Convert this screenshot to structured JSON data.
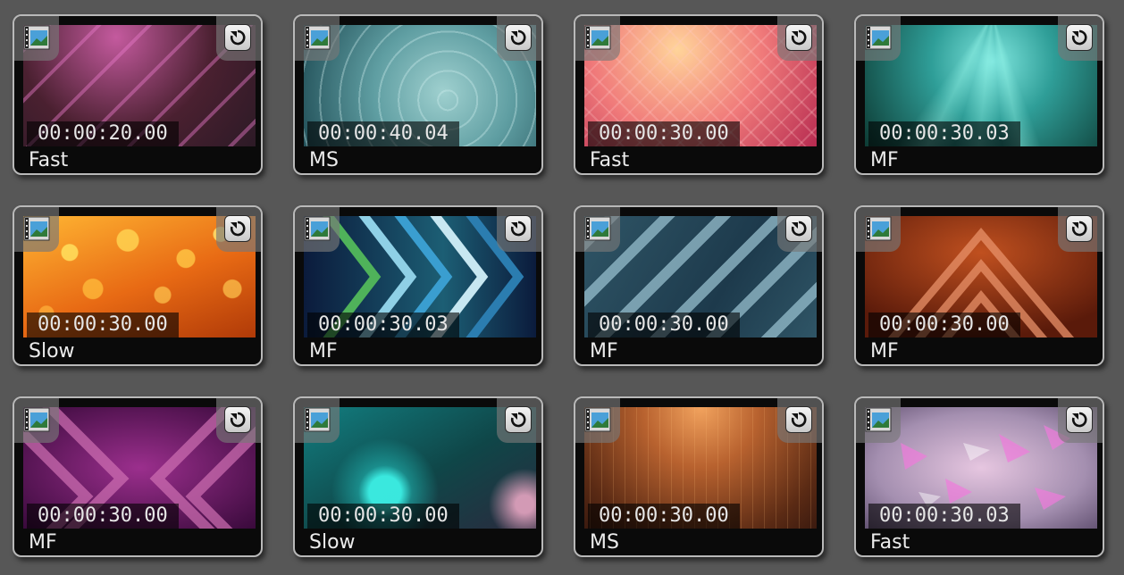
{
  "tiles": [
    {
      "timecode": "00:00:20.00",
      "label": "Fast",
      "theme": "pink-diagonals",
      "colors": [
        "#2c1a26",
        "#b0457f",
        "#4a2030"
      ]
    },
    {
      "timecode": "00:00:40.04",
      "label": "MS",
      "theme": "teal-rings",
      "colors": [
        "#1f4c55",
        "#7ab3b5",
        "#2a5c62"
      ]
    },
    {
      "timecode": "00:00:30.00",
      "label": "Fast",
      "theme": "coral-diamonds",
      "colors": [
        "#d84b68",
        "#ffd49a",
        "#b62a50"
      ]
    },
    {
      "timecode": "00:00:30.03",
      "label": "MF",
      "theme": "teal-rays",
      "colors": [
        "#0d3b34",
        "#45c2be",
        "#0d4a3e"
      ]
    },
    {
      "timecode": "00:00:30.00",
      "label": "Slow",
      "theme": "orange-hexagons",
      "colors": [
        "#d9520a",
        "#ffb633",
        "#b03a08"
      ]
    },
    {
      "timecode": "00:00:30.03",
      "label": "MF",
      "theme": "blue-chevrons",
      "colors": [
        "#0b1b3c",
        "#3a9ed0",
        "#1c5e74"
      ]
    },
    {
      "timecode": "00:00:30.00",
      "label": "MF",
      "theme": "slate-stripes",
      "colors": [
        "#1d3a4c",
        "#7aa3b4",
        "#2f5566"
      ]
    },
    {
      "timecode": "00:00:30.00",
      "label": "MF",
      "theme": "rust-triangles",
      "colors": [
        "#7a2510",
        "#e07a45",
        "#a13a18"
      ]
    },
    {
      "timecode": "00:00:30.00",
      "label": "MF",
      "theme": "magenta-chevrons",
      "colors": [
        "#4b0f4d",
        "#c25aa2",
        "#6b1a6a"
      ]
    },
    {
      "timecode": "00:00:30.00",
      "label": "Slow",
      "theme": "teal-bokeh",
      "colors": [
        "#0f4648",
        "#24c4c0",
        "#2a2a3e"
      ]
    },
    {
      "timecode": "00:00:30.00",
      "label": "MS",
      "theme": "bronze-rain",
      "colors": [
        "#5a2a14",
        "#d98a4d",
        "#3b1a0f"
      ]
    },
    {
      "timecode": "00:00:30.03",
      "label": "Fast",
      "theme": "pink-shards",
      "colors": [
        "#8e7b9c",
        "#e6c6e0",
        "#6a5a7a"
      ]
    }
  ]
}
